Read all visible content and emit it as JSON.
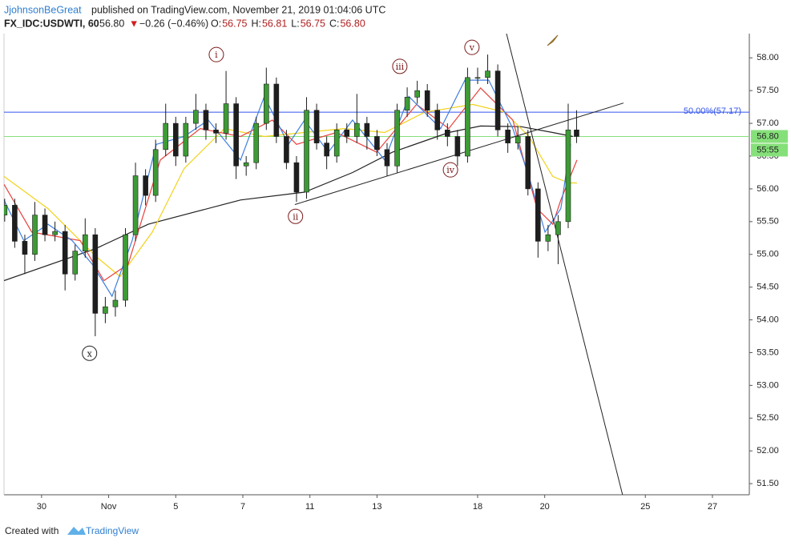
{
  "header": {
    "author": "JjohnsonBeGreat",
    "published": "published on TradingView.com, November 21, 2019 01:04:06 UTC",
    "symbol": "FX_IDC:USDWTI, 60",
    "last": "56.80",
    "arrow": "▼",
    "change": "−0.26 (−0.46%)",
    "ohlc": [
      {
        "label": "O:",
        "value": "56.75"
      },
      {
        "label": "H:",
        "value": "56.81"
      },
      {
        "label": "L:",
        "value": "56.75"
      },
      {
        "label": "C:",
        "value": "56.80"
      }
    ]
  },
  "footer": {
    "created": "Created with",
    "brand": "TradingView"
  },
  "chart_data": {
    "type": "candlestick",
    "up_color": "#3d9b35",
    "down_color": "#1e1e1e",
    "x": [
      -1.1,
      -0.8,
      -0.5,
      -0.2,
      0.1,
      0.4,
      0.7,
      1.0,
      1.3,
      1.6,
      1.9,
      2.2,
      2.5,
      2.8,
      3.1,
      3.4,
      3.7,
      4.0,
      4.3,
      4.6,
      4.9,
      5.2,
      5.5,
      5.8,
      6.1,
      6.4,
      6.7,
      7.0,
      7.3,
      7.6,
      7.9,
      8.2,
      8.5,
      8.8,
      9.1,
      9.4,
      9.7,
      10.0,
      10.3,
      10.6,
      10.9,
      11.2,
      11.5,
      11.8,
      12.1,
      12.4,
      12.7,
      13.0,
      13.3,
      13.6,
      13.9,
      14.2,
      14.5,
      14.8,
      15.1,
      15.4,
      15.7,
      15.95
    ],
    "open": [
      55.6,
      55.75,
      55.2,
      55.0,
      55.6,
      55.3,
      55.35,
      54.7,
      55.05,
      55.3,
      54.1,
      54.2,
      54.3,
      55.3,
      56.2,
      55.9,
      56.6,
      57.0,
      56.5,
      57.0,
      57.2,
      56.9,
      56.85,
      57.3,
      56.35,
      56.4,
      57.0,
      57.6,
      56.8,
      56.4,
      55.95,
      57.2,
      56.7,
      56.5,
      56.9,
      56.8,
      57.0,
      56.8,
      56.6,
      56.35,
      57.2,
      57.4,
      57.5,
      57.2,
      56.9,
      56.8,
      56.5,
      57.7,
      57.7,
      57.8,
      56.9,
      56.7,
      56.8,
      56.0,
      55.2,
      55.3,
      55.5,
      56.9
    ],
    "high": [
      55.85,
      55.85,
      55.3,
      55.8,
      55.7,
      55.5,
      55.45,
      55.15,
      55.55,
      55.4,
      54.35,
      54.45,
      55.4,
      56.4,
      56.3,
      56.75,
      57.3,
      57.1,
      57.1,
      57.45,
      57.3,
      57.0,
      57.8,
      57.4,
      56.5,
      57.1,
      57.85,
      57.7,
      56.9,
      56.5,
      57.4,
      57.3,
      56.8,
      57.0,
      57.0,
      57.45,
      57.1,
      56.9,
      56.7,
      57.3,
      57.55,
      57.65,
      57.6,
      57.3,
      57.0,
      56.9,
      57.85,
      57.85,
      58.05,
      57.9,
      57.0,
      56.95,
      56.9,
      56.1,
      55.45,
      55.6,
      57.3,
      57.2
    ],
    "low": [
      55.5,
      55.1,
      54.7,
      54.9,
      55.2,
      55.2,
      54.45,
      54.6,
      54.95,
      53.75,
      53.95,
      54.05,
      54.2,
      55.2,
      55.75,
      55.8,
      56.5,
      56.35,
      56.4,
      56.9,
      56.75,
      56.7,
      56.75,
      56.15,
      56.2,
      56.3,
      56.9,
      56.7,
      56.3,
      55.8,
      55.85,
      56.6,
      56.3,
      56.4,
      56.7,
      56.7,
      56.6,
      56.5,
      56.2,
      56.25,
      57.1,
      57.3,
      57.1,
      56.75,
      56.65,
      56.35,
      56.4,
      57.6,
      57.6,
      56.8,
      56.55,
      56.6,
      55.9,
      54.95,
      55.05,
      54.85,
      55.4,
      56.7
    ],
    "close": [
      55.75,
      55.2,
      55.0,
      55.6,
      55.3,
      55.35,
      54.7,
      55.05,
      55.3,
      54.1,
      54.2,
      54.3,
      55.3,
      56.2,
      55.9,
      56.6,
      57.0,
      56.5,
      57.0,
      57.2,
      56.9,
      56.85,
      57.3,
      56.35,
      56.4,
      57.0,
      57.6,
      56.8,
      56.4,
      55.95,
      57.2,
      56.7,
      56.5,
      56.9,
      56.8,
      57.0,
      56.8,
      56.6,
      56.35,
      57.2,
      57.4,
      57.5,
      57.2,
      56.9,
      56.8,
      56.5,
      57.7,
      57.7,
      57.8,
      56.9,
      56.7,
      56.8,
      56.0,
      55.2,
      55.3,
      55.5,
      56.9,
      56.8
    ],
    "series": [
      {
        "color": "#222222",
        "x": [
          -1.12,
          1.62,
          3.18,
          5.93,
          7.84,
          9.27,
          10.46,
          12.14,
          13.09,
          14.29,
          15.24,
          15.84
        ],
        "values": [
          54.6,
          55.09,
          55.46,
          55.83,
          55.95,
          56.25,
          56.56,
          56.86,
          56.96,
          56.95,
          56.86,
          56.8
        ]
      },
      {
        "color": "#f2d21b",
        "x": [
          -1.12,
          0.19,
          1.62,
          2.34,
          3.3,
          4.25,
          5.45,
          6.64,
          7.84,
          9.03,
          10.23,
          11.42,
          12.86,
          13.81,
          14.53,
          15.24,
          15.72,
          15.96
        ],
        "values": [
          56.19,
          55.7,
          54.97,
          54.66,
          55.34,
          56.31,
          56.92,
          56.8,
          56.86,
          56.92,
          56.86,
          57.17,
          57.29,
          57.17,
          56.8,
          56.19,
          56.09,
          56.09
        ]
      },
      {
        "color": "#e8413c",
        "x": [
          -1.12,
          -0.29,
          1.15,
          1.86,
          2.58,
          3.54,
          4.73,
          5.93,
          6.88,
          7.6,
          8.79,
          9.99,
          11.18,
          12.14,
          13.09,
          14.05,
          14.77,
          15.24,
          15.48,
          15.96
        ],
        "values": [
          56.07,
          55.34,
          55.21,
          54.6,
          54.85,
          56.44,
          56.92,
          56.8,
          57.05,
          56.68,
          56.86,
          56.56,
          57.29,
          56.92,
          57.54,
          57.05,
          55.7,
          55.46,
          55.83,
          56.44
        ]
      },
      {
        "color": "#3f7fe0",
        "x": [
          -1.12,
          -0.53,
          0.19,
          0.91,
          1.51,
          2.1,
          2.7,
          3.42,
          4.25,
          4.97,
          5.93,
          6.64,
          7.36,
          7.84,
          8.55,
          9.27,
          10.23,
          10.95,
          11.9,
          12.62,
          13.33,
          14.05,
          14.53,
          15.01,
          15.48,
          15.77
        ],
        "values": [
          55.83,
          55.21,
          55.46,
          55.21,
          54.85,
          54.36,
          55.21,
          56.68,
          56.8,
          57.05,
          56.44,
          57.41,
          56.68,
          57.05,
          56.56,
          57.05,
          56.44,
          57.41,
          56.92,
          57.66,
          57.66,
          56.92,
          56.19,
          55.34,
          55.7,
          56.68
        ]
      }
    ],
    "trendlines": [
      {
        "color": "#222222",
        "x": [
          7.55,
          17.35
        ],
        "values": [
          55.76,
          57.31
        ]
      },
      {
        "color": "#222222",
        "x": [
          13.86,
          17.32
        ],
        "values": [
          58.37,
          51.33
        ]
      }
    ],
    "hlines": [
      {
        "value": 57.17,
        "label": "50.00%(57.17)",
        "color": "#3355ee"
      },
      {
        "value": 56.8,
        "label": "56.80",
        "color": "#86e07a"
      }
    ],
    "countdown": "55:55",
    "annotations": [
      {
        "text": "i",
        "x": 5.21,
        "y": 58.05
      },
      {
        "text": "ii",
        "x": 7.57,
        "y": 55.58
      },
      {
        "text": "iii",
        "x": 10.68,
        "y": 57.87
      },
      {
        "text": "iv",
        "x": 12.19,
        "y": 56.29
      },
      {
        "text": "v",
        "x": 12.83,
        "y": 58.16
      },
      {
        "text": "x",
        "x": 1.43,
        "y": 53.49
      }
    ],
    "xlim": [
      -1.12,
      21.1
    ],
    "ylim": [
      51.33,
      58.37
    ],
    "xticks": [
      {
        "value": 0,
        "label": "30"
      },
      {
        "value": 2,
        "label": "Nov"
      },
      {
        "value": 4,
        "label": "5"
      },
      {
        "value": 6,
        "label": "7"
      },
      {
        "value": 8,
        "label": "11"
      },
      {
        "value": 10,
        "label": "13"
      },
      {
        "value": 13,
        "label": "18"
      },
      {
        "value": 15,
        "label": "20"
      },
      {
        "value": 18,
        "label": "25"
      },
      {
        "value": 20,
        "label": "27"
      }
    ],
    "yticks": [
      {
        "value": 51.5,
        "label": "51.50"
      },
      {
        "value": 52,
        "label": "52.00"
      },
      {
        "value": 52.5,
        "label": "52.50"
      },
      {
        "value": 53,
        "label": "53.00"
      },
      {
        "value": 53.5,
        "label": "53.50"
      },
      {
        "value": 54,
        "label": "54.00"
      },
      {
        "value": 54.5,
        "label": "54.50"
      },
      {
        "value": 55,
        "label": "55.00"
      },
      {
        "value": 55.5,
        "label": "55.50"
      },
      {
        "value": 56,
        "label": "56.00"
      },
      {
        "value": 56.5,
        "label": "56.50"
      },
      {
        "value": 57,
        "label": "57.00"
      },
      {
        "value": 57.5,
        "label": "57.50"
      },
      {
        "value": 58,
        "label": "58.00"
      }
    ]
  }
}
